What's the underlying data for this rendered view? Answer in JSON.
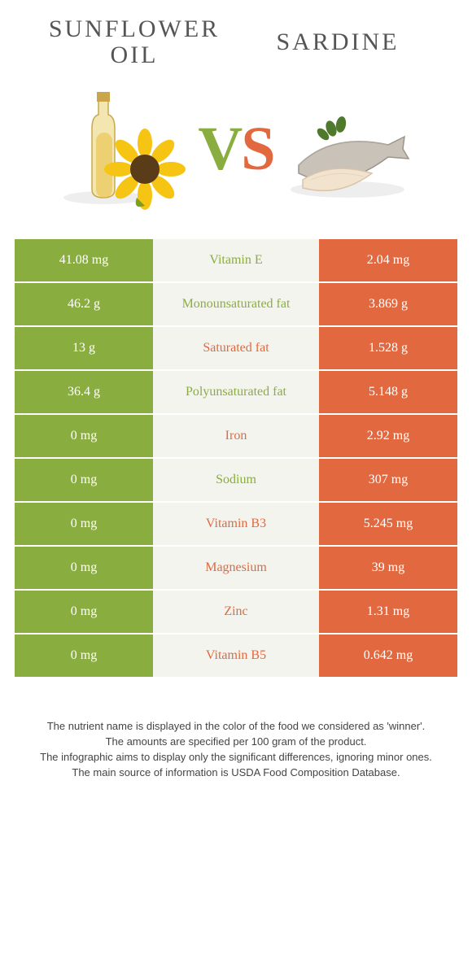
{
  "header": {
    "left_title_line1": "Sunflower",
    "left_title_line2": "oil",
    "right_title": "Sardine"
  },
  "vs": {
    "v": "V",
    "s": "S"
  },
  "colors": {
    "green": "#8aad3f",
    "orange": "#e2693f",
    "mid_bg": "#f4f4ee",
    "body_bg": "#ffffff"
  },
  "table": {
    "rows": [
      {
        "left": "41.08 mg",
        "label": "Vitamin E",
        "right": "2.04 mg",
        "winner": "left"
      },
      {
        "left": "46.2 g",
        "label": "Monounsaturated fat",
        "right": "3.869 g",
        "winner": "left"
      },
      {
        "left": "13 g",
        "label": "Saturated fat",
        "right": "1.528 g",
        "winner": "right"
      },
      {
        "left": "36.4 g",
        "label": "Polyunsaturated fat",
        "right": "5.148 g",
        "winner": "left"
      },
      {
        "left": "0 mg",
        "label": "Iron",
        "right": "2.92 mg",
        "winner": "right"
      },
      {
        "left": "0 mg",
        "label": "Sodium",
        "right": "307 mg",
        "winner": "left"
      },
      {
        "left": "0 mg",
        "label": "Vitamin B3",
        "right": "5.245 mg",
        "winner": "right"
      },
      {
        "left": "0 mg",
        "label": "Magnesium",
        "right": "39 mg",
        "winner": "right"
      },
      {
        "left": "0 mg",
        "label": "Zinc",
        "right": "1.31 mg",
        "winner": "right"
      },
      {
        "left": "0 mg",
        "label": "Vitamin B5",
        "right": "0.642 mg",
        "winner": "right"
      }
    ]
  },
  "footer": {
    "line1": "The nutrient name is displayed in the color of the food we considered as 'winner'.",
    "line2": "The amounts are specified per 100 gram of the product.",
    "line3": "The infographic aims to display only the significant differences, ignoring minor ones.",
    "line4": "The main source of information is USDA Food Composition Database."
  }
}
